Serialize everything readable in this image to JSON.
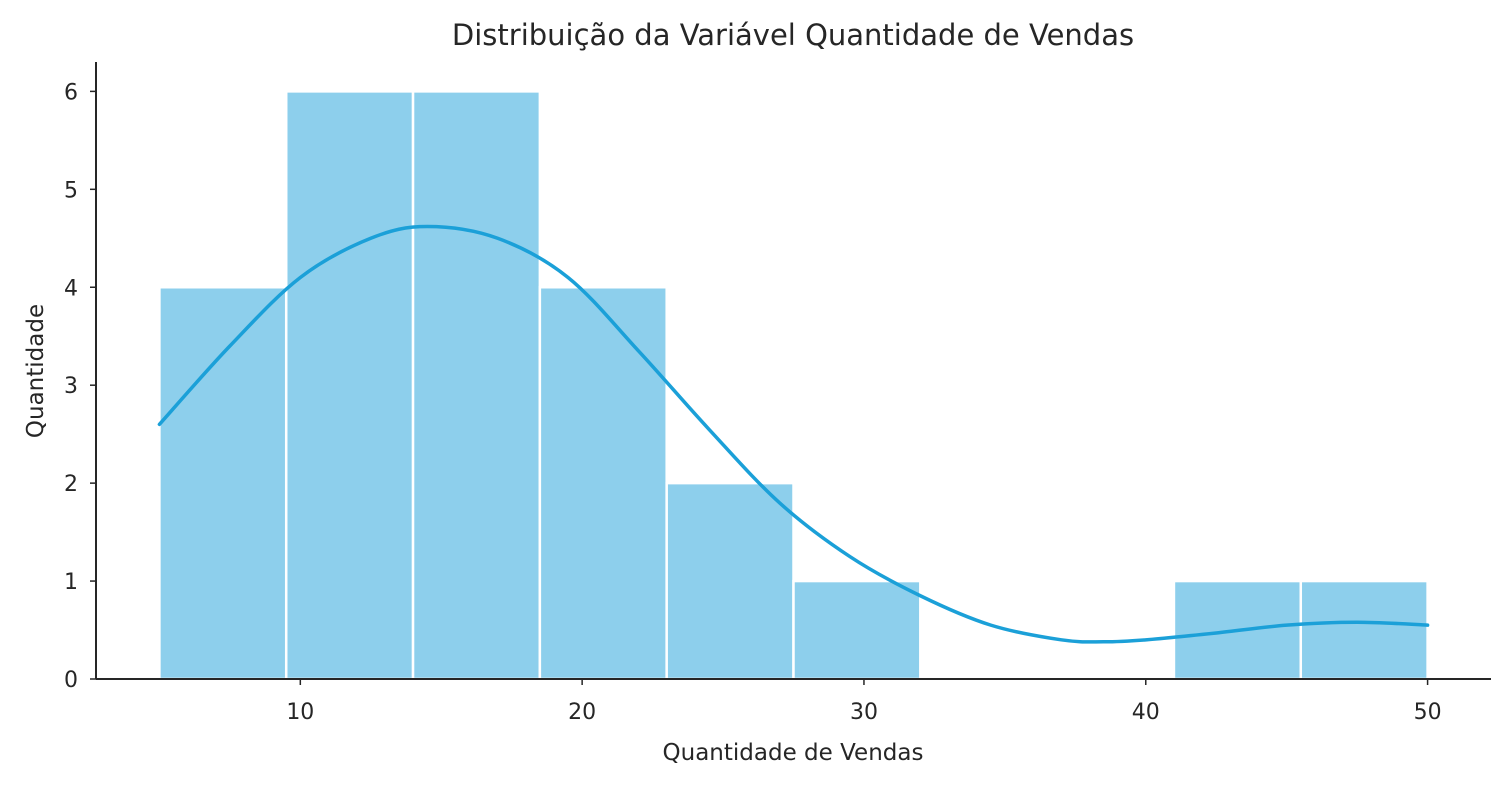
{
  "chart_data": {
    "type": "bar",
    "subtype": "histogram-with-kde",
    "title": "Distribuição da Variável Quantidade de Vendas",
    "xlabel": "Quantidade de Vendas",
    "ylabel": "Quantidade",
    "xlim": [
      2.75,
      52.25
    ],
    "ylim": [
      0,
      6.3
    ],
    "xticks": [
      10,
      20,
      30,
      40,
      50
    ],
    "yticks": [
      0,
      1,
      2,
      3,
      4,
      5,
      6
    ],
    "bins": [
      {
        "x0": 5.0,
        "x1": 9.5,
        "count": 4
      },
      {
        "x0": 9.5,
        "x1": 14.0,
        "count": 6
      },
      {
        "x0": 14.0,
        "x1": 18.5,
        "count": 6
      },
      {
        "x0": 18.5,
        "x1": 23.0,
        "count": 4
      },
      {
        "x0": 23.0,
        "x1": 27.5,
        "count": 2
      },
      {
        "x0": 27.5,
        "x1": 32.0,
        "count": 1
      },
      {
        "x0": 32.0,
        "x1": 36.5,
        "count": 0
      },
      {
        "x0": 36.5,
        "x1": 41.0,
        "count": 0
      },
      {
        "x0": 41.0,
        "x1": 45.5,
        "count": 1
      },
      {
        "x0": 45.5,
        "x1": 50.0,
        "count": 1
      }
    ],
    "kde": {
      "x": [
        5,
        7.5,
        10,
        12.5,
        14.5,
        17,
        19.5,
        22,
        24.5,
        27,
        29.5,
        32,
        34.5,
        37,
        38.5,
        40,
        42.5,
        45,
        47.5,
        50
      ],
      "y": [
        2.6,
        3.4,
        4.1,
        4.5,
        4.62,
        4.5,
        4.1,
        3.35,
        2.55,
        1.8,
        1.25,
        0.85,
        0.55,
        0.4,
        0.38,
        0.4,
        0.47,
        0.55,
        0.58,
        0.55
      ]
    },
    "grid": false,
    "colors": {
      "bar_fill": "#8dcfec",
      "kde_line": "#1ba0d8"
    }
  }
}
